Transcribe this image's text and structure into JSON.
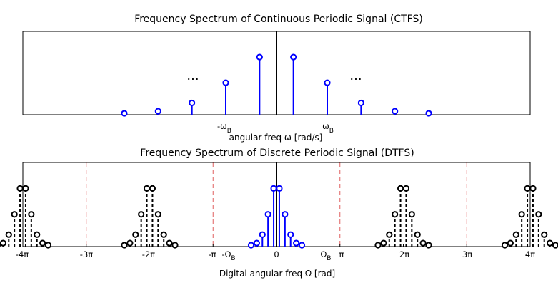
{
  "chart_data": [
    {
      "type": "stem",
      "title": "Frequency Spectrum of Continuous Periodic Signal (CTFS)",
      "xlabel": "angular freq ω [rad/s]",
      "ylabel": "",
      "xlim": [
        -7.5,
        7.5
      ],
      "ylim": [
        0,
        1.2
      ],
      "grid": false,
      "center_line": true,
      "tick_labels": {
        "neg_band": {
          "pre": "-ω",
          "sub": "B"
        },
        "pos_band": {
          "pre": "ω",
          "sub": "B"
        }
      },
      "ellipsis": [
        "...",
        "..."
      ],
      "series": [
        {
          "color": "#0000ff",
          "x": [
            -4.5,
            -3.5,
            -2.5,
            -1.5,
            -0.5,
            0.5,
            1.5,
            2.5,
            3.5,
            4.5
          ],
          "values": [
            0.02,
            0.05,
            0.17,
            0.46,
            0.83,
            0.83,
            0.46,
            0.17,
            0.05,
            0.02
          ]
        }
      ]
    },
    {
      "type": "stem",
      "title": "Frequency Spectrum of Discrete Periodic Signal (DTFS)",
      "xlabel": "Digital angular freq Ω [rad]",
      "ylabel": "",
      "xlim": [
        -12.566,
        12.566
      ],
      "ylim": [
        0,
        1.2
      ],
      "grid": false,
      "center_line": true,
      "period_boundaries": [
        -9.425,
        -3.1416,
        3.1416,
        9.425
      ],
      "boundary_color": "#e06060",
      "tick_labels": {
        "m4pi": "-4π",
        "m3pi": "-3π",
        "m2pi": "-2π",
        "mpi": "-π",
        "neg_band": {
          "pre": "-Ω",
          "sub": "B"
        },
        "zero": "0",
        "pos_band": {
          "pre": "Ω",
          "sub": "B"
        },
        "pi": "π",
        "p2pi": "2π",
        "p3pi": "3π",
        "p4pi": "4π"
      },
      "series": [
        {
          "color": "#0000ff",
          "style": "solid",
          "x": [
            -1.2566,
            -0.9774,
            -0.6981,
            -0.4189,
            -0.1396,
            0.1396,
            0.4189,
            0.6981,
            0.9774,
            1.2566
          ],
          "values": [
            0.02,
            0.05,
            0.17,
            0.46,
            0.83,
            0.83,
            0.46,
            0.17,
            0.05,
            0.02
          ]
        },
        {
          "color": "#000000",
          "style": "dashed",
          "replica_offsets": [
            -12.566,
            -6.283,
            6.283,
            12.566
          ],
          "x": [
            -1.2566,
            -0.9774,
            -0.6981,
            -0.4189,
            -0.1396,
            0.1396,
            0.4189,
            0.6981,
            0.9774,
            1.2566
          ],
          "values": [
            0.02,
            0.05,
            0.17,
            0.46,
            0.83,
            0.83,
            0.46,
            0.17,
            0.05,
            0.02
          ]
        }
      ]
    }
  ]
}
